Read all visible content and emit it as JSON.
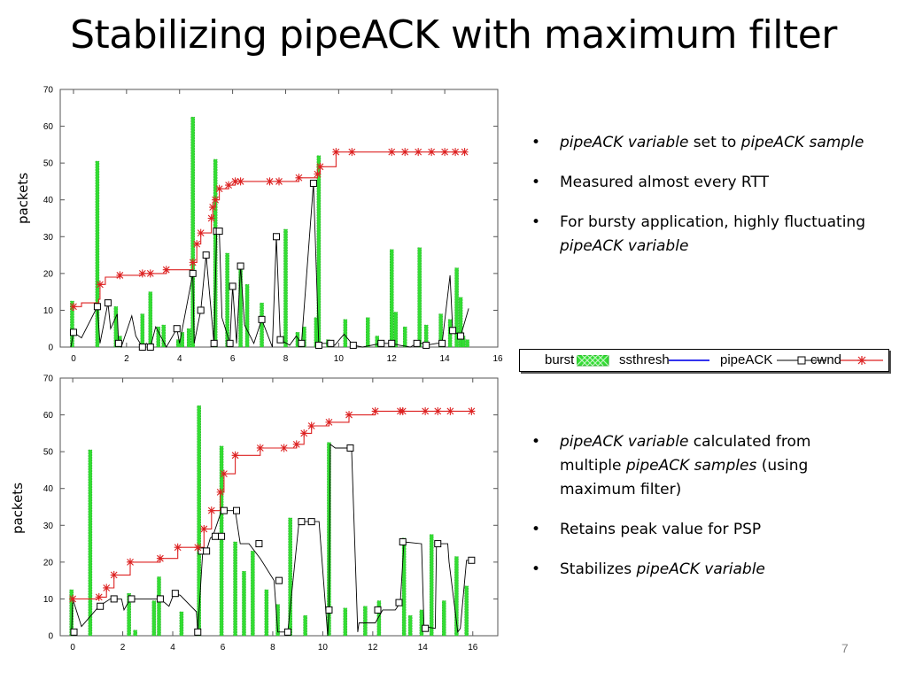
{
  "slide": {
    "title": "Stabilizing pipeACK with maximum filter",
    "page_number": "7"
  },
  "bullets_top": [
    [
      {
        "t": "pipeACK variable",
        "i": true
      },
      {
        "t": " set to ",
        "i": false
      },
      {
        "t": "pipeACK sample",
        "i": true
      }
    ],
    [
      {
        "t": "Measured almost every RTT",
        "i": false
      }
    ],
    [
      {
        "t": "For bursty application, highly fluctuating ",
        "i": false
      },
      {
        "t": "pipeACK variable",
        "i": true
      }
    ]
  ],
  "bullets_bottom": [
    [
      {
        "t": "pipeACK variable",
        "i": true
      },
      {
        "t": " calculated from multiple ",
        "i": false
      },
      {
        "t": "pipeACK samples",
        "i": true
      },
      {
        "t": " (using maximum filter)",
        "i": false
      }
    ],
    [
      {
        "t": "Retains peak value for PSP",
        "i": false
      }
    ],
    [
      {
        "t": "Stabilizes ",
        "i": false
      },
      {
        "t": "pipeACK variable",
        "i": true
      }
    ]
  ],
  "legend": {
    "burst": "burst",
    "ssthresh": "ssthresh",
    "pipeack": "pipeACK",
    "cwnd": "cwnd"
  },
  "colors": {
    "burst": "#33dd33",
    "ssthresh": "#3333ee",
    "pipeack": "#000000",
    "cwnd": "#dd2222"
  },
  "chart_data": [
    {
      "type": "line",
      "ylabel": "packets",
      "xlim": [
        -0.5,
        16
      ],
      "ylim": [
        0,
        70
      ],
      "xticks": [
        0,
        2,
        4,
        6,
        8,
        10,
        12,
        14,
        16
      ],
      "yticks": [
        0,
        10,
        20,
        30,
        40,
        50,
        60,
        70
      ],
      "series": [
        {
          "name": "burst",
          "kind": "bar",
          "x": [
            -0.05,
            0.9,
            1.6,
            1.75,
            3.2,
            2.6,
            2.9,
            3.4,
            3.95,
            4.1,
            4.35,
            4.5,
            5.35,
            5.8,
            6.3,
            6.55,
            7.1,
            8.0,
            8.45,
            8.7,
            9.15,
            9.25,
            9.6,
            10.25,
            11.1,
            11.45,
            12.0,
            12.15,
            12.5,
            13.05,
            13.3,
            13.85,
            14.2,
            14.45,
            14.6,
            14.7,
            14.85
          ],
          "values": [
            12.5,
            50.5,
            11,
            3,
            5.5,
            9,
            15,
            6,
            2,
            4,
            5,
            62.5,
            51,
            25.5,
            22,
            17,
            12,
            32,
            4,
            5.5,
            8,
            52,
            2,
            7.5,
            8,
            3,
            26.5,
            9.5,
            5.5,
            27,
            6,
            9,
            7.5,
            21.5,
            13.5,
            3,
            2
          ]
        },
        {
          "name": "pipeACK",
          "kind": "line",
          "x": [
            -0.1,
            0.0,
            0.3,
            0.9,
            1.0,
            1.3,
            1.4,
            1.65,
            1.7,
            1.8,
            2.2,
            2.35,
            2.6,
            2.75,
            2.9,
            3.1,
            3.5,
            3.9,
            4.0,
            4.5,
            4.55,
            4.8,
            5.0,
            5.3,
            5.4,
            5.5,
            5.6,
            5.9,
            6.0,
            6.15,
            6.3,
            6.45,
            6.8,
            7.1,
            7.5,
            7.65,
            7.8,
            8.15,
            8.4,
            8.6,
            9.05,
            9.25,
            9.3,
            9.7,
            9.85,
            10.2,
            10.55,
            10.9,
            11.6,
            12.0,
            12.3,
            12.7,
            12.95,
            13.15,
            13.3,
            13.7,
            13.9,
            14.2,
            14.3,
            14.6,
            14.9
          ],
          "values": [
            0,
            4,
            2.5,
            11,
            1,
            12,
            5,
            9,
            1,
            0,
            8.5,
            3,
            0,
            1,
            0,
            5.5,
            0,
            5,
            1,
            20,
            1,
            10,
            25,
            1,
            31.5,
            31.5,
            8,
            1,
            16.5,
            1,
            22,
            6,
            1,
            7.5,
            0,
            30,
            2,
            0.5,
            3,
            1,
            44.5,
            0.5,
            1,
            1,
            0.5,
            3.5,
            0.5,
            0,
            1,
            1,
            0.5,
            0,
            1,
            1,
            0.5,
            1,
            1,
            19.5,
            4.5,
            3,
            10.5
          ]
        },
        {
          "name": "cwnd",
          "kind": "line",
          "x": [
            -0.05,
            0.0,
            0.3,
            0.95,
            1.0,
            1.2,
            1.75,
            2.6,
            2.9,
            3.5,
            4.5,
            4.65,
            4.8,
            5.2,
            5.25,
            5.35,
            5.5,
            5.85,
            6.1,
            6.3,
            7.4,
            7.75,
            8.5,
            9.2,
            9.3,
            9.9,
            10.5,
            12.0,
            12.5,
            13.0,
            13.5,
            14.0,
            14.4,
            14.6,
            14.75
          ],
          "values": [
            10,
            11,
            12,
            13,
            17,
            19,
            19.5,
            20,
            20,
            21,
            23,
            28,
            31,
            35,
            38,
            40,
            43,
            44,
            45,
            45,
            45,
            45,
            46,
            47,
            49,
            53,
            53,
            53,
            53,
            53,
            53,
            53,
            53,
            53,
            53
          ]
        }
      ],
      "cwnd_markers_x": [
        0.0,
        1.0,
        1.75,
        2.6,
        2.9,
        3.5,
        4.5,
        4.65,
        4.8,
        5.2,
        5.25,
        5.35,
        5.5,
        5.85,
        6.1,
        6.3,
        7.4,
        7.75,
        8.5,
        9.2,
        9.3,
        9.9,
        10.5,
        12.0,
        12.5,
        13.0,
        13.5,
        14.0,
        14.4,
        14.75
      ],
      "pipeack_markers_x": [
        0.0,
        0.9,
        1.3,
        1.7,
        2.6,
        2.9,
        3.9,
        4.5,
        4.8,
        5.0,
        5.3,
        5.4,
        5.5,
        5.9,
        6.0,
        6.3,
        7.1,
        7.65,
        7.8,
        8.6,
        9.05,
        9.25,
        9.7,
        10.55,
        11.6,
        12.0,
        12.95,
        13.3,
        13.9,
        14.3,
        14.6
      ]
    },
    {
      "type": "line",
      "ylabel": "packets",
      "xlim": [
        -0.5,
        17
      ],
      "ylim": [
        0,
        70
      ],
      "xticks": [
        0,
        2,
        4,
        6,
        8,
        10,
        12,
        14,
        16
      ],
      "yticks": [
        0,
        10,
        20,
        30,
        40,
        50,
        60,
        70
      ],
      "series": [
        {
          "name": "burst",
          "kind": "bar",
          "x": [
            -0.05,
            0.7,
            2.25,
            2.5,
            3.25,
            3.45,
            4.35,
            5.05,
            5.95,
            6.5,
            6.85,
            7.2,
            7.75,
            8.2,
            8.7,
            9.3,
            10.25,
            10.9,
            11.7,
            12.25,
            13.25,
            13.5,
            13.95,
            14.35,
            14.85,
            15.35,
            15.75
          ],
          "values": [
            12.5,
            50.5,
            11.5,
            1.5,
            9.5,
            16,
            6.5,
            62.5,
            51.5,
            25.5,
            17.5,
            23,
            12.5,
            8.5,
            32,
            5.5,
            52.5,
            7.5,
            8,
            9.5,
            26.5,
            5.5,
            7,
            27.5,
            9.5,
            21.5,
            13.5
          ]
        },
        {
          "name": "pipeACK",
          "kind": "line",
          "x": [
            -0.05,
            0.0,
            0.35,
            1.05,
            1.5,
            1.95,
            2.05,
            2.3,
            3.5,
            3.85,
            4.05,
            4.3,
            4.95,
            5.0,
            5.2,
            5.35,
            5.5,
            5.6,
            5.95,
            6.5,
            6.7,
            7.05,
            7.5,
            8.05,
            8.2,
            8.6,
            9.05,
            9.25,
            9.45,
            9.85,
            10.2,
            10.25,
            10.3,
            10.5,
            11.15,
            11.4,
            11.45,
            12.1,
            12.4,
            12.9,
            13.1,
            13.25,
            13.95,
            14.05,
            14.5,
            14.55,
            15.0,
            15.05,
            15.4,
            15.5,
            15.75,
            16.05
          ],
          "values": [
            0,
            10,
            2.5,
            8,
            10,
            10,
            7,
            10,
            10,
            8,
            11.5,
            11,
            6.5,
            1,
            23,
            23,
            26.5,
            27,
            34,
            34,
            25,
            25,
            21,
            15,
            1,
            1,
            31,
            31,
            31,
            31,
            0,
            7,
            52,
            51,
            51,
            1,
            3.5,
            3.5,
            7,
            7,
            9,
            25.5,
            25,
            2.5,
            2,
            25,
            25,
            20,
            1,
            2,
            20.5,
            20.5
          ],
          "markers": [
            [
              0.05,
              1
            ],
            [
              1.1,
              8
            ],
            [
              1.65,
              10
            ],
            [
              2.35,
              10
            ],
            [
              3.5,
              10
            ],
            [
              4.1,
              11.5
            ],
            [
              5.0,
              1
            ],
            [
              5.15,
              23
            ],
            [
              5.35,
              23
            ],
            [
              5.7,
              27
            ],
            [
              5.95,
              27
            ],
            [
              6.05,
              34
            ],
            [
              6.55,
              34
            ],
            [
              7.45,
              25
            ],
            [
              8.25,
              15
            ],
            [
              8.6,
              1
            ],
            [
              9.15,
              31
            ],
            [
              9.55,
              31
            ],
            [
              10.25,
              7
            ],
            [
              11.1,
              51
            ],
            [
              12.2,
              7
            ],
            [
              13.05,
              9
            ],
            [
              13.2,
              25.5
            ],
            [
              14.1,
              2
            ],
            [
              14.6,
              25
            ],
            [
              15.95,
              20.5
            ]
          ]
        },
        {
          "name": "cwnd",
          "kind": "line",
          "x": [
            -0.05,
            1.05,
            1.35,
            1.65,
            2.3,
            3.5,
            4.2,
            5.0,
            5.25,
            5.55,
            5.75,
            5.9,
            6.05,
            6.5,
            7.5,
            8.45,
            8.95,
            9.25,
            9.55,
            10.25,
            11.05,
            12.1,
            13.1,
            13.2,
            14.1,
            14.6,
            15.1,
            15.95
          ],
          "values": [
            10,
            10.5,
            13,
            16.5,
            20,
            21,
            24,
            24,
            29,
            34,
            34,
            39,
            44,
            49,
            51,
            51,
            52,
            55,
            57,
            58,
            60,
            61,
            61,
            61,
            61,
            61,
            61,
            61
          ],
          "markers_x": [
            0.0,
            1.05,
            1.35,
            1.65,
            2.3,
            3.5,
            4.2,
            5.0,
            5.25,
            5.55,
            5.9,
            6.05,
            6.5,
            7.5,
            8.45,
            8.95,
            9.25,
            9.55,
            10.25,
            11.05,
            12.1,
            13.1,
            13.2,
            14.1,
            14.6,
            15.1,
            15.95
          ]
        }
      ]
    }
  ]
}
